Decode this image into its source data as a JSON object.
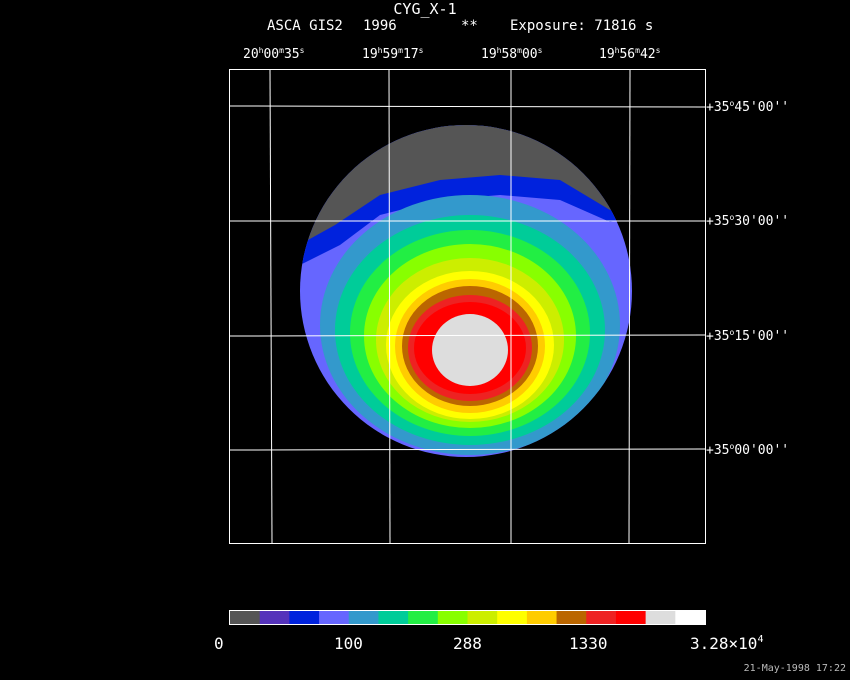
{
  "header": {
    "title": "CYG_X-1",
    "instrument": "ASCA GIS2",
    "year": "1996",
    "flag": "**",
    "exposure": "Exposure: 71816 s"
  },
  "ra_labels": [
    {
      "h": "20",
      "m": "00",
      "s": "35"
    },
    {
      "h": "19",
      "m": "59",
      "s": "17"
    },
    {
      "h": "19",
      "m": "58",
      "s": "00"
    },
    {
      "h": "19",
      "m": "56",
      "s": "42"
    }
  ],
  "dec_labels": [
    {
      "d": "+35",
      "m": "45",
      "s": "00"
    },
    {
      "d": "+35",
      "m": "30",
      "s": "00"
    },
    {
      "d": "+35",
      "m": "15",
      "s": "00"
    },
    {
      "d": "+35",
      "m": "00",
      "s": "00"
    }
  ],
  "colorbar": {
    "colors": [
      "#555555",
      "#5533bb",
      "#0022dd",
      "#6666ff",
      "#3399cc",
      "#00cc99",
      "#22ee44",
      "#88ff00",
      "#ccee00",
      "#ffff00",
      "#ffcc00",
      "#bb6600",
      "#ee2222",
      "#ff0000",
      "#dddddd",
      "#ffffff"
    ],
    "labels": [
      "0",
      "100",
      "288",
      "1330"
    ],
    "max_mantissa": "3.28×10",
    "max_exp": "4"
  },
  "timestamp": "21-May-1998 17:22"
}
